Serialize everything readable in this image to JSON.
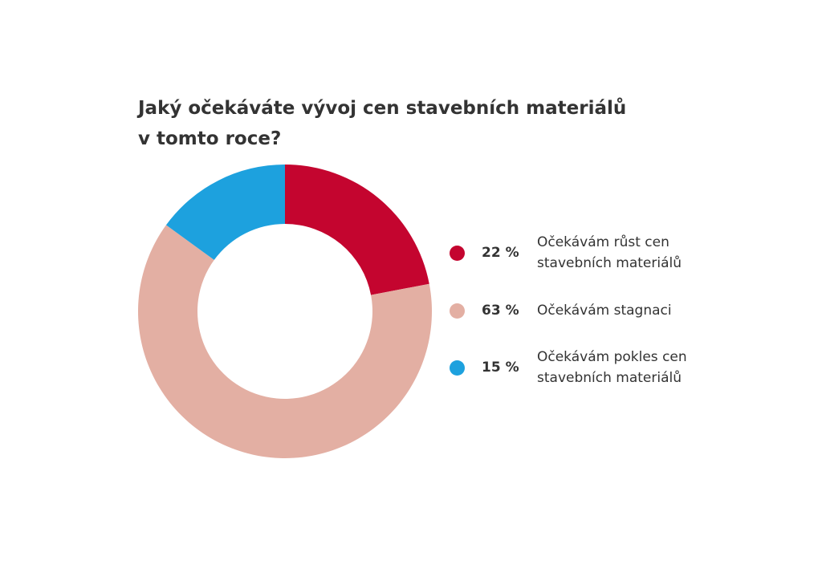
{
  "chart_data": {
    "type": "pie",
    "variant": "donut",
    "title_lines": [
      "Jaký očekáváte vývoj cen stavebních materiálů",
      "v tomto roce?"
    ],
    "slices": [
      {
        "label": "Očekávám růst cen stavebních materiálů",
        "value": 22,
        "value_label": "22 %",
        "color": "#C4052F"
      },
      {
        "label": "Očekávám stagnaci",
        "value": 63,
        "value_label": "63 %",
        "color": "#E3AFA3"
      },
      {
        "label": "Očekávám pokles cen stavebních materiálů",
        "value": 15,
        "value_label": "15 %",
        "color": "#1DA1DE"
      }
    ],
    "legend_position": "right"
  }
}
